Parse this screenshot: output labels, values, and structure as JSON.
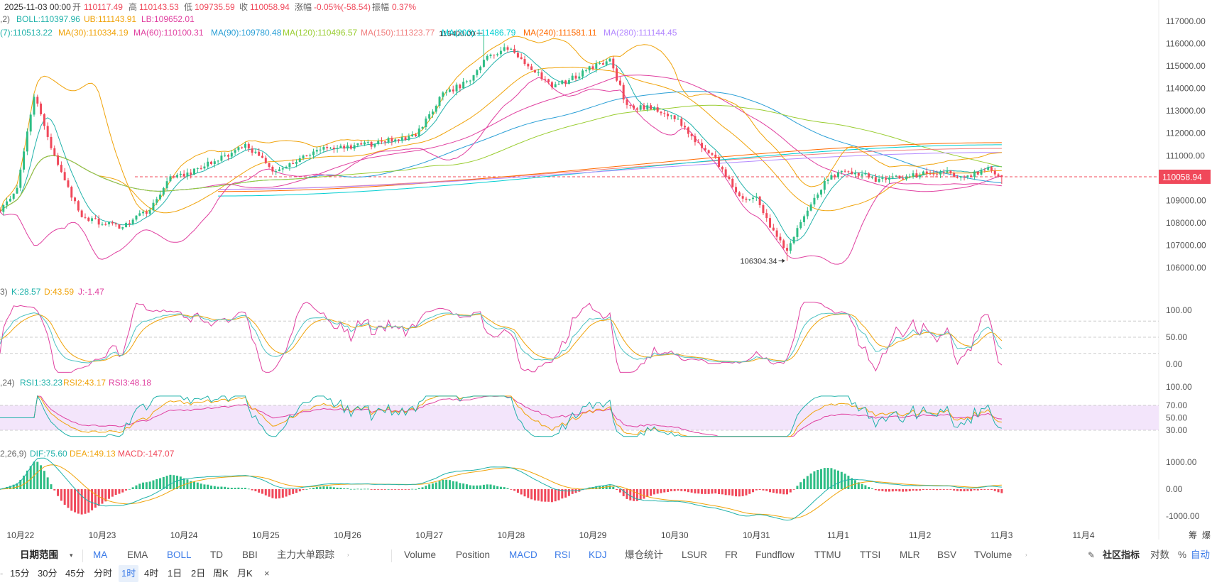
{
  "header": {
    "date": "2025-11-03 00:00",
    "open_label": "开",
    "open": "110117.49",
    "high_label": "高",
    "high": "110143.53",
    "low_label": "低",
    "low": "109735.59",
    "close_label": "收",
    "close": "110058.94",
    "change_label": "涨幅",
    "change": "-0.05%(-58.54)",
    "amp_label": "振幅",
    "amp": "0.37%"
  },
  "boll": {
    "prefix": ",2)",
    "mid": "BOLL:110397.96",
    "ub": "UB:111143.91",
    "lb": "LB:109652.01"
  },
  "ma_legend": [
    {
      "text": "(7):110513.22",
      "color": "#20b2aa"
    },
    {
      "text": "MA(30):110334.19",
      "color": "#f0a30a"
    },
    {
      "text": "MA(60):110100.31",
      "color": "#e040a0"
    },
    {
      "text": "MA(90):109780.48",
      "color": "#2a9fd6"
    },
    {
      "text": "MA(120):110496.57",
      "color": "#9acd32"
    },
    {
      "text": "MA(150):111323.77",
      "color": "#f08080"
    },
    {
      "text": "MA(200):111486.79",
      "color": "#00ced1"
    },
    {
      "text": "MA(240):111581.11",
      "color": "#ff6a00"
    },
    {
      "text": "MA(280):111144.45",
      "color": "#b388ff"
    }
  ],
  "annotations": {
    "high": "116400.00",
    "low": "106304.34"
  },
  "price_tag": "110058.94",
  "kdj": {
    "prefix": "3)",
    "k": "K:28.57",
    "d": "D:43.59",
    "j": "J:-1.47"
  },
  "rsi": {
    "prefix": ",24)",
    "r1": "RSI1:33.23",
    "r2": "RSI2:43.17",
    "r3": "RSI3:48.18"
  },
  "macd": {
    "prefix": "2,26,9)",
    "dif": "DIF:75.60",
    "dea": "DEA:149.13",
    "macd": "MACD:-147.07"
  },
  "colors": {
    "up": "#2ebd85",
    "down": "#f0485a",
    "k": "#4fc3c3",
    "d": "#f0a30a",
    "j": "#e040a0",
    "rsi_band": "#f3e5fb"
  },
  "chart_data": [
    {
      "type": "candlestick",
      "name": "price",
      "price_axis": [
        "117000.00",
        "116000.00",
        "115000.00",
        "114000.00",
        "113000.00",
        "112000.00",
        "111000.00",
        "110000.00",
        "109000.00",
        "108000.00",
        "107000.00",
        "106000.00"
      ],
      "ylim": [
        105700,
        117400
      ],
      "x_ticks": [
        "10月22",
        "10月23",
        "10月24",
        "10月25",
        "10月26",
        "10月27",
        "10月28",
        "10月29",
        "10月30",
        "10月31",
        "11月1",
        "11月2",
        "11月3",
        "11月4"
      ],
      "x_range": [
        "2025-10-21 18:00",
        "2025-11-04 20:00"
      ],
      "interval": "1h",
      "last_candle": {
        "time": "2025-11-03 00:00",
        "open": 110117.49,
        "high": 110143.53,
        "low": 109735.59,
        "close": 110058.94
      },
      "close_path": [
        {
          "t": "2025-10-21 18:00",
          "v": 108500
        },
        {
          "t": "2025-10-21 23:00",
          "v": 109600
        },
        {
          "t": "2025-10-22 04:00",
          "v": 113700
        },
        {
          "t": "2025-10-22 07:00",
          "v": 112400
        },
        {
          "t": "2025-10-22 11:00",
          "v": 110500
        },
        {
          "t": "2025-10-22 18:00",
          "v": 108200
        },
        {
          "t": "2025-10-23 06:00",
          "v": 107800
        },
        {
          "t": "2025-10-23 14:00",
          "v": 108600
        },
        {
          "t": "2025-10-23 20:00",
          "v": 110000
        },
        {
          "t": "2025-10-24 03:00",
          "v": 110300
        },
        {
          "t": "2025-10-24 12:00",
          "v": 111000
        },
        {
          "t": "2025-10-24 18:00",
          "v": 111500
        },
        {
          "t": "2025-10-25 03:00",
          "v": 110200
        },
        {
          "t": "2025-10-25 14:00",
          "v": 111200
        },
        {
          "t": "2025-10-26 06:00",
          "v": 111500
        },
        {
          "t": "2025-10-26 20:00",
          "v": 111900
        },
        {
          "t": "2025-10-27 04:00",
          "v": 113800
        },
        {
          "t": "2025-10-27 12:00",
          "v": 114300
        },
        {
          "t": "2025-10-27 16:00",
          "v": 115300
        },
        {
          "t": "2025-10-27 22:00",
          "v": 115800
        },
        {
          "t": "2025-10-28 02:00",
          "v": 115500
        },
        {
          "t": "2025-10-28 12:00",
          "v": 114000
        },
        {
          "t": "2025-10-28 22:00",
          "v": 114800
        },
        {
          "t": "2025-10-29 05:00",
          "v": 115300
        },
        {
          "t": "2025-10-29 10:00",
          "v": 113200
        },
        {
          "t": "2025-10-29 18:00",
          "v": 113100
        },
        {
          "t": "2025-10-30 00:00",
          "v": 112700
        },
        {
          "t": "2025-10-30 06:00",
          "v": 111600
        },
        {
          "t": "2025-10-30 12:00",
          "v": 110800
        },
        {
          "t": "2025-10-30 20:00",
          "v": 109000
        },
        {
          "t": "2025-10-31 00:00",
          "v": 109300
        },
        {
          "t": "2025-10-31 03:00",
          "v": 108100
        },
        {
          "t": "2025-10-31 09:00",
          "v": 106700
        },
        {
          "t": "2025-10-31 14:00",
          "v": 108300
        },
        {
          "t": "2025-10-31 20:00",
          "v": 109800
        },
        {
          "t": "2025-11-01 02:00",
          "v": 110400
        },
        {
          "t": "2025-11-01 12:00",
          "v": 109900
        },
        {
          "t": "2025-11-01 22:00",
          "v": 110100
        },
        {
          "t": "2025-11-02 06:00",
          "v": 110300
        },
        {
          "t": "2025-11-02 14:00",
          "v": 110000
        },
        {
          "t": "2025-11-02 20:00",
          "v": 110500
        },
        {
          "t": "2025-11-03 00:00",
          "v": 110059
        }
      ],
      "high_mark": {
        "t": "2025-10-27 16:00",
        "v": 116400
      },
      "low_mark": {
        "t": "2025-10-31 09:00",
        "v": 106304.34
      },
      "series_last": {
        "BOLL": 110397.96,
        "UB": 111143.91,
        "LB": 109652.01,
        "MA7": 110513.22,
        "MA30": 110334.19,
        "MA60": 110100.31,
        "MA90": 109780.48,
        "MA120": 110496.57,
        "MA150": 111323.77,
        "MA200": 111486.79,
        "MA240": 111581.11,
        "MA280": 111144.45
      }
    },
    {
      "type": "line",
      "name": "KDJ",
      "y_ticks": [
        "100.00",
        "50.00",
        "0.00"
      ],
      "ylim": [
        -15,
        115
      ],
      "guides": [
        20,
        50,
        80
      ],
      "series_last": {
        "K": 28.57,
        "D": 43.59,
        "J": -1.47
      }
    },
    {
      "type": "line",
      "name": "RSI",
      "y_ticks": [
        "100.00",
        "70.00",
        "50.00",
        "30.00"
      ],
      "ylim": [
        0,
        100
      ],
      "band": [
        30,
        70
      ],
      "series_last": {
        "RSI1": 33.23,
        "RSI2": 43.17,
        "RSI3": 48.18
      }
    },
    {
      "type": "bar",
      "name": "MACD",
      "y_ticks": [
        "1000.00",
        "0.00",
        "-1000.00"
      ],
      "ylim": [
        -1200,
        1250
      ],
      "series_last": {
        "DIF": 75.6,
        "DEA": 149.13,
        "MACD": -147.07
      }
    }
  ],
  "toolbar": {
    "range_label": "日期范围",
    "main_indicators": [
      "MA",
      "EMA",
      "BOLL",
      "TD",
      "BBI",
      "主力大单跟踪"
    ],
    "main_active": [
      true,
      false,
      true,
      false,
      false,
      false
    ],
    "sub_indicators": [
      "Volume",
      "Position",
      "MACD",
      "RSI",
      "KDJ",
      "爆仓统计",
      "LSUR",
      "FR",
      "Fundflow",
      "TTMU",
      "TTSI",
      "MLR",
      "BSV",
      "TVolume"
    ],
    "sub_active": [
      false,
      false,
      true,
      true,
      true,
      false,
      false,
      false,
      false,
      false,
      false,
      false,
      false,
      false
    ],
    "community_label": "社区指标",
    "log_label": "对数",
    "pct_label": "%",
    "auto_label": "自动",
    "corner_labels": [
      "筹",
      "爆"
    ]
  },
  "periods": {
    "items": [
      "15分",
      "30分",
      "45分",
      "分时",
      "1时",
      "4时",
      "1日",
      "2日",
      "周K",
      "月K"
    ],
    "selected": 4,
    "close": "×"
  }
}
